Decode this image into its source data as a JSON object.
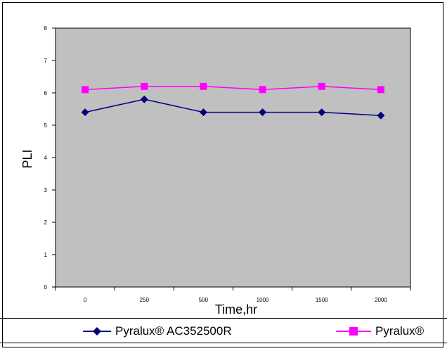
{
  "chart_data": {
    "type": "line",
    "title": "",
    "xlabel": "Time,hr",
    "ylabel": "PLI",
    "categories": [
      "0",
      "250",
      "500",
      "1000",
      "1500",
      "2000"
    ],
    "ylim": [
      0,
      8
    ],
    "yticks": [
      "0",
      "1",
      "2",
      "3",
      "4",
      "5",
      "6",
      "7",
      "8"
    ],
    "grid": false,
    "plot_background": "#c0c0c0",
    "legend_position": "bottom",
    "series": [
      {
        "name": "Pyralux® AC352500R",
        "values": [
          5.4,
          5.8,
          5.4,
          5.4,
          5.4,
          5.3
        ],
        "color": "#000080",
        "marker": "diamond"
      },
      {
        "name": "Pyralux®",
        "values": [
          6.1,
          6.2,
          6.2,
          6.1,
          6.2,
          6.1
        ],
        "color": "#ff00ff",
        "marker": "square"
      }
    ]
  }
}
